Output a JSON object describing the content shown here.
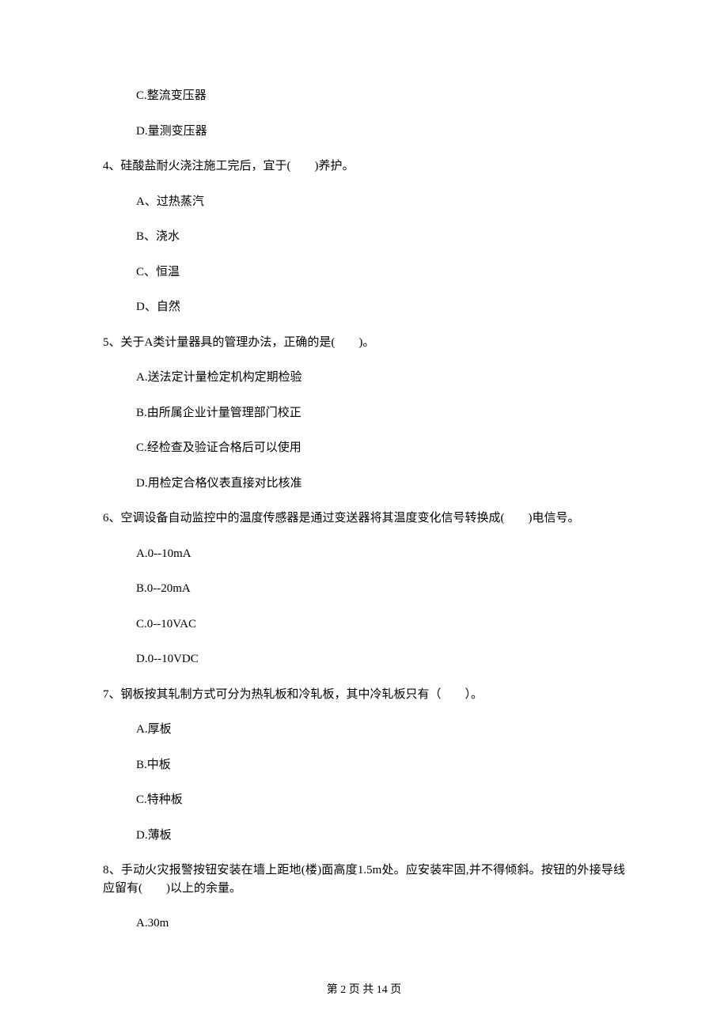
{
  "options_before": [
    "C.整流变压器",
    "D.量测变压器"
  ],
  "questions": [
    {
      "stem": "4、硅酸盐耐火浇注施工完后，宜于(　　)养护。",
      "options": [
        "A、过热蒸汽",
        "B、浇水",
        "C、恒温",
        "D、自然"
      ]
    },
    {
      "stem": "5、关于A类计量器具的管理办法，正确的是(　　)。",
      "options": [
        "A.送法定计量检定机构定期检验",
        "B.由所属企业计量管理部门校正",
        "C.经检查及验证合格后可以使用",
        "D.用检定合格仪表直接对比核准"
      ]
    },
    {
      "stem": "6、空调设备自动监控中的温度传感器是通过变送器将其温度变化信号转换成(　　)电信号。",
      "options": [
        "A.0--10mA",
        "B.0--20mA",
        "C.0--10VAC",
        "D.0--10VDC"
      ]
    },
    {
      "stem": "7、钢板按其轧制方式可分为热轧板和冷轧板，其中冷轧板只有（　　）。",
      "options": [
        "A.厚板",
        "B.中板",
        "C.特种板",
        "D.薄板"
      ]
    },
    {
      "stem": "8、手动火灾报警按钮安装在墙上距地(楼)面高度1.5m处。应安装牢固,并不得倾斜。按钮的外接导线应留有(　　)以上的余量。",
      "options": [
        "A.30m"
      ]
    }
  ],
  "footer": "第 2 页 共 14 页"
}
